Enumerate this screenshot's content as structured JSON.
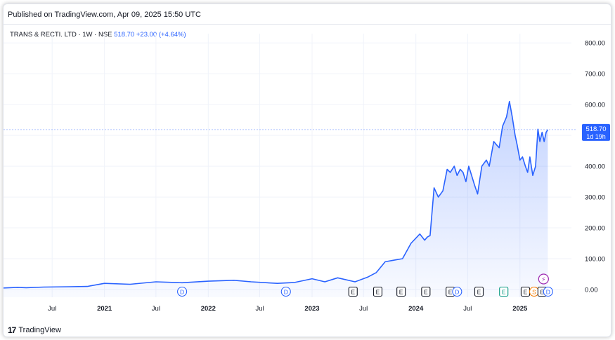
{
  "header": {
    "published": "Published on TradingView.com, Apr 09, 2025 15:50 UTC"
  },
  "legend": {
    "symbol": "TRANS & RECTI. LTD · 1W · NSE",
    "price": "518.70",
    "change": "+23.00 (+4.64%)"
  },
  "price_label": {
    "value": "518.70",
    "countdown": "1d 19h"
  },
  "footer": {
    "brand": "TradingView",
    "logo": "17"
  },
  "colors": {
    "line": "#2962ff",
    "accent": "#2962ff",
    "grid": "#f0f3fa",
    "text": "#131722"
  },
  "events": [
    {
      "label": "D",
      "kind": "dividend",
      "x": "2021-10-01"
    },
    {
      "label": "D",
      "kind": "dividend",
      "x": "2022-10-01"
    },
    {
      "label": "E",
      "kind": "earnings",
      "x": "2023-05-25"
    },
    {
      "label": "E",
      "kind": "earnings",
      "x": "2023-08-20"
    },
    {
      "label": "E",
      "kind": "earnings",
      "x": "2023-11-10"
    },
    {
      "label": "E",
      "kind": "earnings",
      "x": "2024-02-05"
    },
    {
      "label": "E",
      "kind": "earnings",
      "x": "2024-05-01"
    },
    {
      "label": "D",
      "kind": "dividend",
      "x": "2024-05-25"
    },
    {
      "label": "E",
      "kind": "earnings",
      "x": "2024-08-10"
    },
    {
      "label": "E",
      "kind": "earnings-green",
      "x": "2024-11-05"
    },
    {
      "label": "E",
      "kind": "earnings",
      "x": "2025-01-20"
    },
    {
      "label": "S",
      "kind": "split",
      "x": "2025-02-20"
    },
    {
      "label": "E",
      "kind": "earnings",
      "x": "2025-03-20"
    },
    {
      "label": "D",
      "kind": "dividend",
      "x": "2025-04-10"
    }
  ],
  "flash_marker": {
    "label": "⚡",
    "x": "2025-03-25"
  },
  "chart_data": {
    "type": "area",
    "title": "",
    "xlabel": "",
    "ylabel": "",
    "ylim": [
      -25,
      830
    ],
    "xlim": [
      "2020-01-12",
      "2025-07-01"
    ],
    "grid": true,
    "y_ticks": [
      "800.00",
      "700.00",
      "600.00",
      "500.00",
      "400.00",
      "300.00",
      "200.00",
      "100.00",
      "0.00"
    ],
    "x_ticks": [
      {
        "label": "Jul",
        "x": "2020-07-01"
      },
      {
        "label": "2021",
        "x": "2021-01-01"
      },
      {
        "label": "Jul",
        "x": "2021-07-01"
      },
      {
        "label": "2022",
        "x": "2022-01-01"
      },
      {
        "label": "Jul",
        "x": "2022-07-01"
      },
      {
        "label": "2023",
        "x": "2023-01-01"
      },
      {
        "label": "Jul",
        "x": "2023-07-01"
      },
      {
        "label": "2024",
        "x": "2024-01-01"
      },
      {
        "label": "Jul",
        "x": "2024-07-01"
      },
      {
        "label": "2025",
        "x": "2025-01-01"
      }
    ],
    "series": [
      {
        "x": [
          "2020-01-12",
          "2020-03-01",
          "2020-04-01",
          "2020-06-01",
          "2020-09-01",
          "2020-11-01",
          "2021-01-01",
          "2021-04-01",
          "2021-07-01",
          "2021-10-01",
          "2022-01-01",
          "2022-04-01",
          "2022-06-01",
          "2022-09-01",
          "2022-11-01",
          "2023-01-01",
          "2023-02-15",
          "2023-04-01",
          "2023-06-01",
          "2023-07-15",
          "2023-08-15",
          "2023-09-15",
          "2023-10-15",
          "2023-11-15",
          "2023-12-15",
          "2024-01-15",
          "2024-02-01",
          "2024-02-10",
          "2024-02-20",
          "2024-03-05",
          "2024-03-20",
          "2024-04-05",
          "2024-04-20",
          "2024-05-01",
          "2024-05-15",
          "2024-05-25",
          "2024-06-05",
          "2024-06-15",
          "2024-06-25",
          "2024-07-05",
          "2024-07-15",
          "2024-07-25",
          "2024-08-05",
          "2024-08-20",
          "2024-09-05",
          "2024-09-15",
          "2024-10-01",
          "2024-10-10",
          "2024-10-20",
          "2024-11-01",
          "2024-11-15",
          "2024-11-25",
          "2024-12-05",
          "2024-12-15",
          "2024-12-22",
          "2025-01-01",
          "2025-01-10",
          "2025-01-20",
          "2025-01-28",
          "2025-02-05",
          "2025-02-15",
          "2025-02-25",
          "2025-03-05",
          "2025-03-12",
          "2025-03-20",
          "2025-03-27",
          "2025-04-03",
          "2025-04-09"
        ],
        "values": [
          5,
          7,
          6,
          8,
          9,
          10,
          20,
          17,
          25,
          22,
          27,
          30,
          25,
          20,
          23,
          35,
          25,
          38,
          25,
          40,
          55,
          90,
          95,
          100,
          150,
          180,
          160,
          170,
          175,
          330,
          300,
          320,
          390,
          380,
          400,
          370,
          390,
          380,
          350,
          400,
          370,
          340,
          310,
          400,
          420,
          400,
          480,
          470,
          460,
          530,
          560,
          610,
          560,
          500,
          470,
          420,
          430,
          400,
          380,
          430,
          370,
          400,
          520,
          480,
          510,
          480,
          510,
          518.7
        ]
      }
    ]
  }
}
